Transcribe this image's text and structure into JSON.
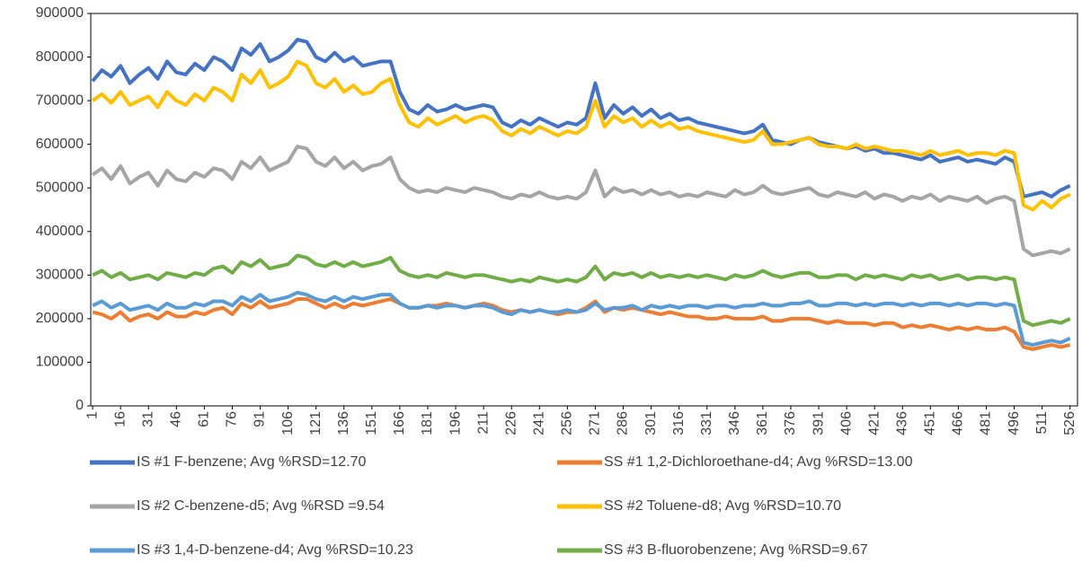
{
  "chart_data": {
    "type": "line",
    "x": [
      1,
      6,
      11,
      16,
      21,
      26,
      31,
      36,
      41,
      46,
      51,
      56,
      61,
      66,
      71,
      76,
      81,
      86,
      91,
      96,
      101,
      106,
      111,
      116,
      121,
      126,
      131,
      136,
      141,
      146,
      151,
      156,
      161,
      166,
      171,
      176,
      181,
      186,
      191,
      196,
      201,
      206,
      211,
      216,
      221,
      226,
      231,
      236,
      241,
      246,
      251,
      256,
      261,
      266,
      271,
      276,
      281,
      286,
      291,
      296,
      301,
      306,
      311,
      316,
      321,
      326,
      331,
      336,
      341,
      346,
      351,
      356,
      361,
      366,
      371,
      376,
      381,
      386,
      391,
      396,
      401,
      406,
      411,
      416,
      421,
      426,
      431,
      436,
      441,
      446,
      451,
      456,
      461,
      466,
      471,
      476,
      481,
      486,
      491,
      496,
      501,
      506,
      511,
      516,
      521,
      526
    ],
    "xlim": [
      0,
      530
    ],
    "xticks": [
      1,
      16,
      31,
      46,
      61,
      76,
      91,
      106,
      121,
      136,
      151,
      166,
      181,
      196,
      211,
      226,
      241,
      256,
      271,
      286,
      301,
      316,
      331,
      346,
      361,
      376,
      391,
      406,
      421,
      436,
      451,
      466,
      481,
      496,
      511,
      526
    ],
    "ylim": [
      0,
      900000
    ],
    "yticks": [
      0,
      100000,
      200000,
      300000,
      400000,
      500000,
      600000,
      700000,
      800000,
      900000
    ],
    "grid": false,
    "series": [
      {
        "name": "IS #1 F-benzene; Avg %RSD=12.70",
        "color": "#4472c4",
        "values": [
          745000,
          770000,
          755000,
          780000,
          740000,
          760000,
          775000,
          750000,
          790000,
          765000,
          760000,
          785000,
          770000,
          800000,
          790000,
          770000,
          820000,
          805000,
          830000,
          790000,
          800000,
          815000,
          840000,
          835000,
          800000,
          790000,
          810000,
          790000,
          800000,
          780000,
          785000,
          790000,
          790000,
          720000,
          680000,
          670000,
          690000,
          675000,
          680000,
          690000,
          680000,
          685000,
          690000,
          685000,
          650000,
          640000,
          655000,
          645000,
          660000,
          650000,
          640000,
          650000,
          645000,
          660000,
          740000,
          660000,
          690000,
          670000,
          685000,
          665000,
          680000,
          660000,
          670000,
          655000,
          660000,
          650000,
          645000,
          640000,
          635000,
          630000,
          625000,
          630000,
          645000,
          610000,
          605000,
          600000,
          610000,
          615000,
          605000,
          600000,
          595000,
          590000,
          595000,
          585000,
          590000,
          580000,
          580000,
          575000,
          570000,
          565000,
          575000,
          560000,
          565000,
          570000,
          560000,
          565000,
          560000,
          555000,
          570000,
          560000,
          480000,
          485000,
          490000,
          480000,
          495000,
          505000
        ]
      },
      {
        "name": "SS #1 1,2-Dichloroethane-d4; Avg %RSD=13.00",
        "color": "#ed7d31",
        "values": [
          215000,
          210000,
          200000,
          215000,
          195000,
          205000,
          210000,
          200000,
          215000,
          205000,
          205000,
          215000,
          210000,
          220000,
          225000,
          210000,
          235000,
          225000,
          240000,
          225000,
          230000,
          235000,
          245000,
          245000,
          235000,
          225000,
          235000,
          225000,
          235000,
          230000,
          235000,
          240000,
          245000,
          235000,
          225000,
          225000,
          230000,
          230000,
          235000,
          230000,
          225000,
          230000,
          235000,
          230000,
          220000,
          215000,
          220000,
          215000,
          220000,
          215000,
          210000,
          215000,
          215000,
          225000,
          240000,
          215000,
          225000,
          220000,
          225000,
          220000,
          215000,
          210000,
          215000,
          210000,
          205000,
          205000,
          200000,
          200000,
          205000,
          200000,
          200000,
          200000,
          205000,
          195000,
          195000,
          200000,
          200000,
          200000,
          195000,
          190000,
          195000,
          190000,
          190000,
          190000,
          185000,
          190000,
          190000,
          180000,
          185000,
          180000,
          185000,
          180000,
          175000,
          180000,
          175000,
          180000,
          175000,
          175000,
          180000,
          170000,
          135000,
          130000,
          135000,
          140000,
          135000,
          140000
        ]
      },
      {
        "name": "IS #2 C-benzene-d5; Avg %RSD =9.54",
        "color": "#a5a5a5",
        "values": [
          530000,
          545000,
          520000,
          550000,
          510000,
          525000,
          535000,
          505000,
          540000,
          520000,
          515000,
          535000,
          525000,
          545000,
          540000,
          520000,
          560000,
          545000,
          570000,
          540000,
          550000,
          560000,
          595000,
          590000,
          560000,
          550000,
          570000,
          545000,
          560000,
          540000,
          550000,
          555000,
          570000,
          520000,
          500000,
          490000,
          495000,
          490000,
          500000,
          495000,
          490000,
          500000,
          495000,
          490000,
          480000,
          475000,
          485000,
          480000,
          490000,
          480000,
          475000,
          480000,
          475000,
          490000,
          540000,
          480000,
          500000,
          490000,
          495000,
          485000,
          495000,
          485000,
          490000,
          480000,
          485000,
          480000,
          490000,
          485000,
          480000,
          495000,
          485000,
          490000,
          505000,
          490000,
          485000,
          490000,
          495000,
          500000,
          485000,
          480000,
          490000,
          485000,
          480000,
          490000,
          475000,
          485000,
          480000,
          470000,
          480000,
          475000,
          485000,
          470000,
          480000,
          475000,
          470000,
          480000,
          465000,
          475000,
          480000,
          470000,
          360000,
          345000,
          350000,
          355000,
          350000,
          360000
        ]
      },
      {
        "name": "SS #2 Toluene-d8; Avg %RSD=10.70",
        "color": "#ffc000",
        "values": [
          700000,
          715000,
          695000,
          720000,
          690000,
          700000,
          710000,
          685000,
          720000,
          700000,
          690000,
          715000,
          700000,
          730000,
          720000,
          700000,
          760000,
          740000,
          770000,
          730000,
          740000,
          755000,
          790000,
          780000,
          740000,
          730000,
          750000,
          720000,
          735000,
          715000,
          720000,
          740000,
          750000,
          690000,
          650000,
          640000,
          660000,
          645000,
          655000,
          665000,
          650000,
          660000,
          665000,
          655000,
          630000,
          620000,
          635000,
          625000,
          640000,
          630000,
          620000,
          630000,
          625000,
          640000,
          700000,
          640000,
          665000,
          650000,
          660000,
          640000,
          655000,
          640000,
          650000,
          635000,
          640000,
          630000,
          625000,
          620000,
          615000,
          610000,
          605000,
          610000,
          630000,
          600000,
          600000,
          605000,
          610000,
          615000,
          600000,
          595000,
          595000,
          590000,
          600000,
          590000,
          595000,
          590000,
          585000,
          585000,
          580000,
          575000,
          585000,
          575000,
          580000,
          585000,
          575000,
          580000,
          580000,
          575000,
          585000,
          580000,
          460000,
          450000,
          470000,
          455000,
          475000,
          485000
        ]
      },
      {
        "name": "IS #3 1,4-D-benzene-d4; Avg %RSD=10.23",
        "color": "#5b9bd5",
        "values": [
          230000,
          240000,
          225000,
          235000,
          220000,
          225000,
          230000,
          220000,
          235000,
          225000,
          225000,
          235000,
          230000,
          240000,
          240000,
          230000,
          250000,
          240000,
          255000,
          240000,
          245000,
          250000,
          260000,
          255000,
          245000,
          240000,
          250000,
          240000,
          250000,
          245000,
          250000,
          255000,
          255000,
          235000,
          225000,
          225000,
          230000,
          225000,
          230000,
          230000,
          225000,
          230000,
          230000,
          225000,
          215000,
          210000,
          220000,
          215000,
          220000,
          215000,
          215000,
          220000,
          215000,
          220000,
          235000,
          220000,
          225000,
          225000,
          230000,
          220000,
          230000,
          225000,
          230000,
          225000,
          230000,
          230000,
          225000,
          230000,
          230000,
          225000,
          230000,
          230000,
          235000,
          230000,
          230000,
          235000,
          235000,
          240000,
          230000,
          230000,
          235000,
          235000,
          230000,
          235000,
          230000,
          235000,
          235000,
          230000,
          235000,
          230000,
          235000,
          235000,
          230000,
          235000,
          230000,
          235000,
          235000,
          230000,
          235000,
          230000,
          145000,
          140000,
          145000,
          150000,
          145000,
          155000
        ]
      },
      {
        "name": "SS #3 B-fluorobenzene; Avg %RSD=9.67",
        "color": "#70ad47",
        "values": [
          300000,
          310000,
          295000,
          305000,
          290000,
          295000,
          300000,
          290000,
          305000,
          300000,
          295000,
          305000,
          300000,
          315000,
          320000,
          305000,
          330000,
          320000,
          335000,
          315000,
          320000,
          325000,
          345000,
          340000,
          325000,
          320000,
          330000,
          320000,
          330000,
          320000,
          325000,
          330000,
          340000,
          310000,
          300000,
          295000,
          300000,
          295000,
          305000,
          300000,
          295000,
          300000,
          300000,
          295000,
          290000,
          285000,
          290000,
          285000,
          295000,
          290000,
          285000,
          290000,
          285000,
          295000,
          320000,
          290000,
          305000,
          300000,
          305000,
          295000,
          305000,
          295000,
          300000,
          295000,
          300000,
          295000,
          300000,
          295000,
          290000,
          300000,
          295000,
          300000,
          310000,
          300000,
          295000,
          300000,
          305000,
          305000,
          295000,
          295000,
          300000,
          300000,
          290000,
          300000,
          295000,
          300000,
          295000,
          290000,
          300000,
          295000,
          300000,
          290000,
          295000,
          300000,
          290000,
          295000,
          295000,
          290000,
          295000,
          290000,
          195000,
          185000,
          190000,
          195000,
          190000,
          200000
        ]
      }
    ]
  }
}
